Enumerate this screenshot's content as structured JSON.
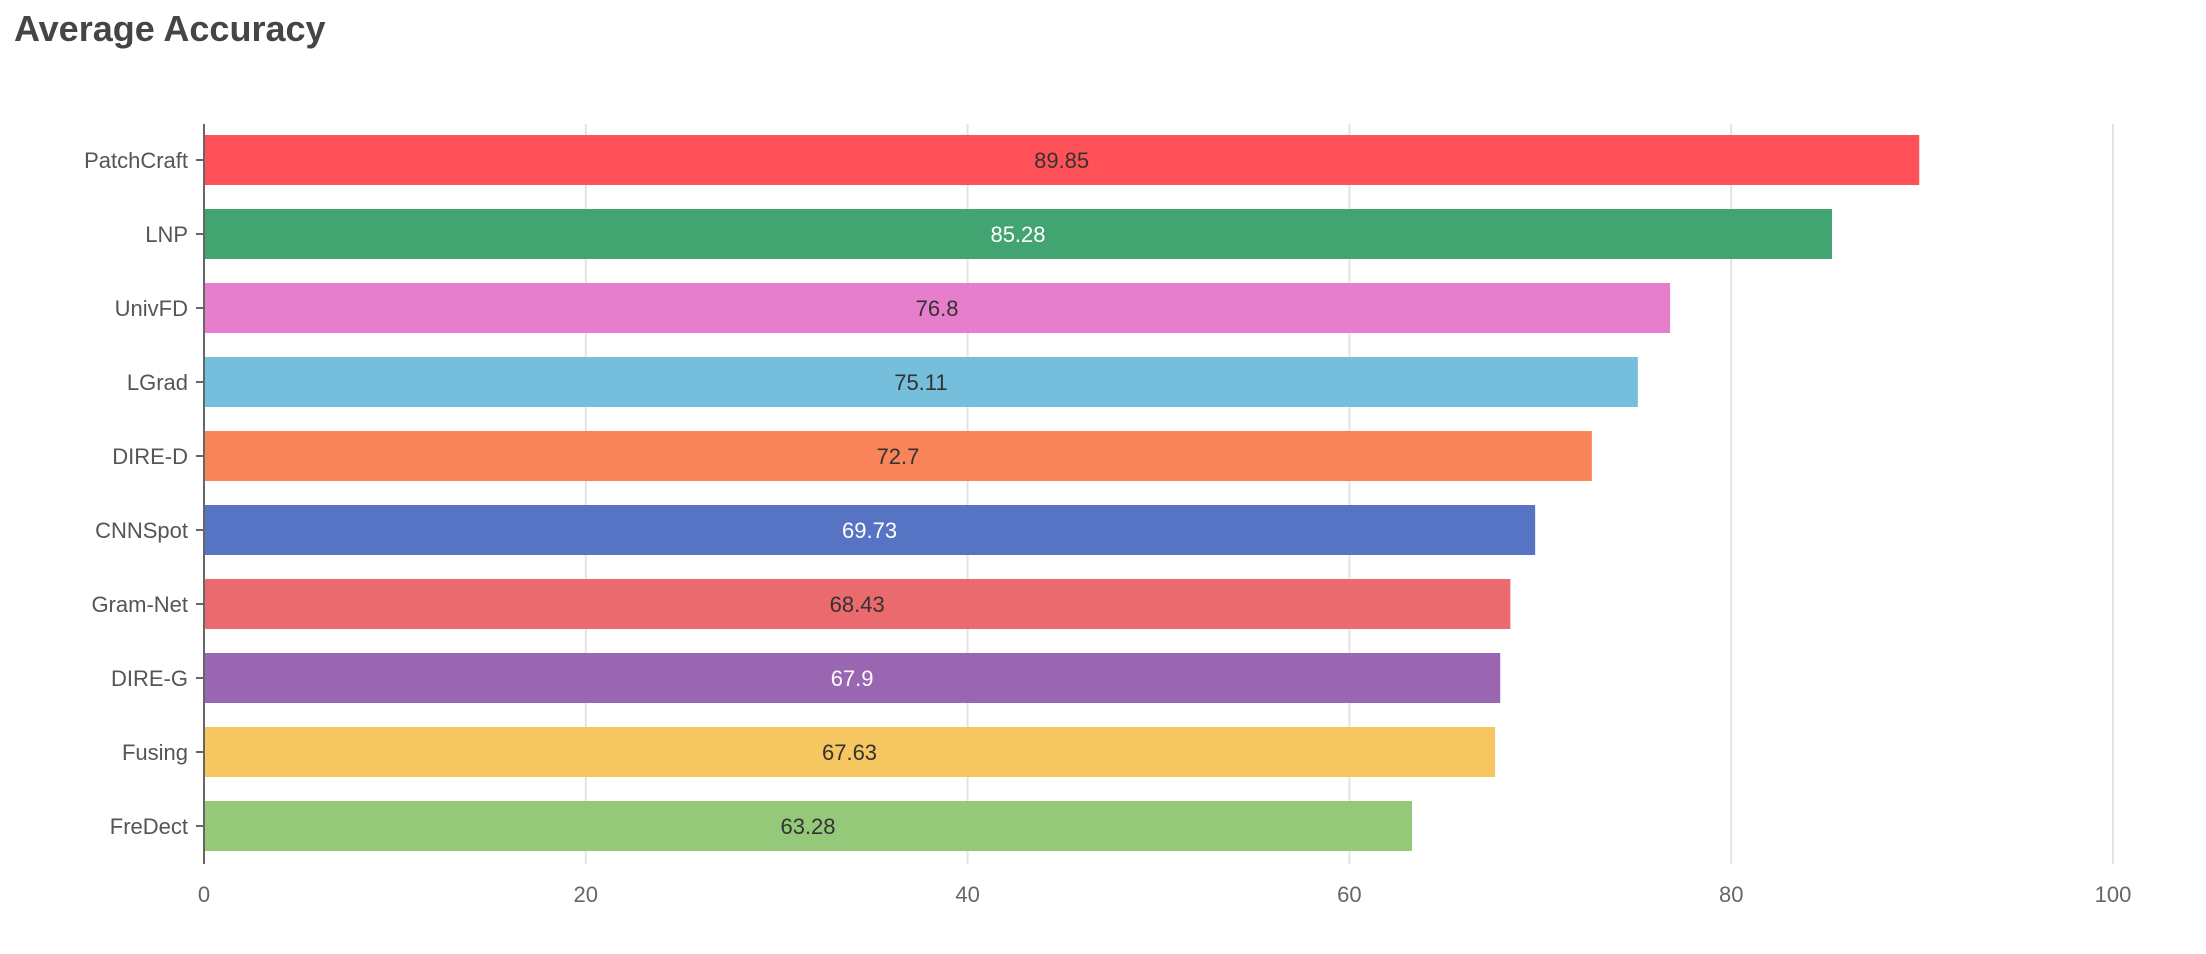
{
  "chart_data": {
    "type": "bar",
    "orientation": "horizontal",
    "title": "Average Accuracy",
    "xlabel": "",
    "ylabel": "",
    "xlim": [
      0,
      100
    ],
    "x_ticks": [
      0,
      20,
      40,
      60,
      80,
      100
    ],
    "grid": "vertical",
    "legend": "none",
    "categories": [
      "PatchCraft",
      "LNP",
      "UnivFD",
      "LGrad",
      "DIRE-D",
      "CNNSpot",
      "Gram-Net",
      "DIRE-G",
      "Fusing",
      "FreDect"
    ],
    "values": [
      89.85,
      85.28,
      76.8,
      75.11,
      72.7,
      69.73,
      68.43,
      67.9,
      67.63,
      63.28
    ],
    "data_labels": [
      "89.85",
      "85.28",
      "76.8",
      "75.11",
      "72.7",
      "69.73",
      "68.43",
      "67.9",
      "67.63",
      "63.28"
    ],
    "colors": [
      "#ff5157",
      "#42a571",
      "#e77ecb",
      "#76bfdc",
      "#f9845a",
      "#5674c3",
      "#eb6a6e",
      "#9a65b1",
      "#f6c660",
      "#93c978"
    ],
    "label_colors": [
      "#333333",
      "#ffffff",
      "#333333",
      "#333333",
      "#333333",
      "#ffffff",
      "#333333",
      "#ffffff",
      "#333333",
      "#333333"
    ]
  }
}
